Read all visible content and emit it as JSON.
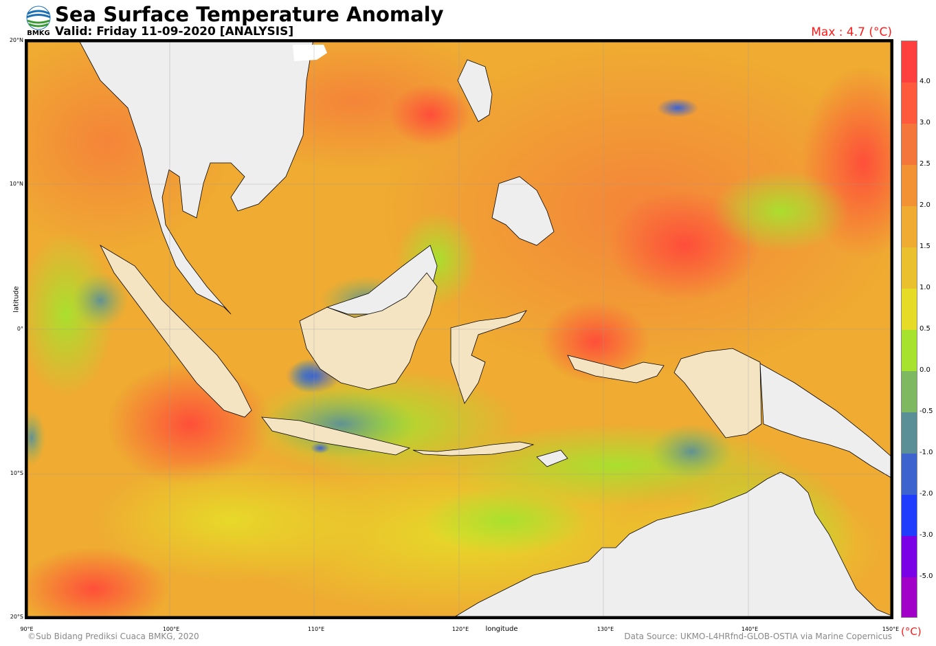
{
  "header": {
    "title": "Sea Surface Temperature Anomaly",
    "subtitle": "Valid: Friday 11-09-2020 [ANALYSIS]",
    "max_label": "Max : 4.7 (°C)",
    "logo_text": "BMKG"
  },
  "axes": {
    "xlabel": "longitude",
    "ylabel": "latitude",
    "lat_ticks": [
      "20°N",
      "10°N",
      "0°",
      "10°S",
      "20°S"
    ],
    "lon_ticks": [
      "90°E",
      "100°E",
      "110°E",
      "120°E",
      "130°E",
      "140°E",
      "150°E"
    ]
  },
  "map": {
    "extent": {
      "lon": [
        90,
        150
      ],
      "lat": [
        -20,
        20
      ]
    },
    "colors": {
      "land_other": "#eeeeee",
      "land_indonesia": "#f4e4c2",
      "coastline": "#000000",
      "frame": "#000000",
      "gridline": "#9a9a9a"
    }
  },
  "colorbar": {
    "unit": "(°C)",
    "labels": [
      "4.0",
      "3.0",
      "2.5",
      "2.0",
      "1.5",
      "1.0",
      "0.5",
      "0.0",
      "-0.5",
      "-1.0",
      "-2.0",
      "-3.0",
      "-5.0"
    ],
    "colors": [
      "#ff3e3e",
      "#ff5a3c",
      "#f5763a",
      "#f39234",
      "#efab32",
      "#eac02e",
      "#e6dc28",
      "#a6e22e",
      "#7eb860",
      "#5b8f98",
      "#3d63cf",
      "#1f3cff",
      "#7a00e6",
      "#a000c8"
    ]
  },
  "footer": {
    "credit_left": "©Sub Bidang Prediksi Cuaca BMKG, 2020",
    "credit_right": "Data Source: UKMO-L4HRfnd-GLOB-OSTIA via Marine Copernicus"
  }
}
